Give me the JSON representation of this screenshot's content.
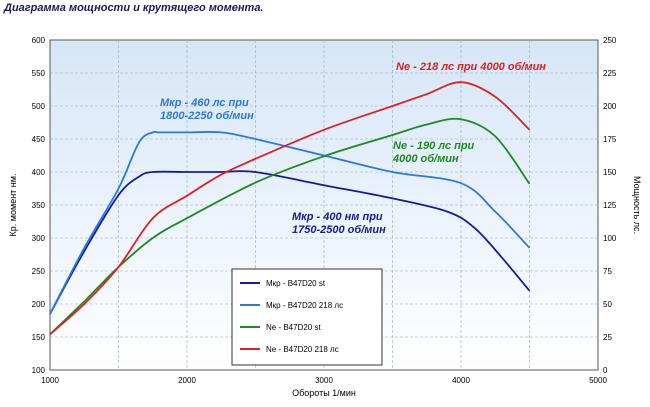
{
  "title": "Диаграмма мощности и крутящего момента.",
  "chart_data": {
    "type": "line",
    "xlabel": "Обороты 1/мин",
    "ylabel_left": "Кр. момент нм.",
    "ylabel_right": "Мощность лс.",
    "xlim": [
      1000,
      5000
    ],
    "ylim_left": [
      100,
      600
    ],
    "ylim_right": [
      0,
      250
    ],
    "x_ticks": [
      1000,
      2000,
      3000,
      4000,
      5000
    ],
    "y_left_ticks": [
      100,
      150,
      200,
      250,
      300,
      350,
      400,
      450,
      500,
      550,
      600
    ],
    "y_right_ticks": [
      0,
      25,
      50,
      75,
      100,
      125,
      150,
      175,
      200,
      225,
      250
    ],
    "grid": true,
    "series": [
      {
        "name": "Mкр -  B47D20 st",
        "axis": "left",
        "color": "#1a1a9a",
        "x": [
          1000,
          1250,
          1500,
          1650,
          1750,
          2000,
          2250,
          2500,
          3000,
          3500,
          3900,
          4100,
          4300,
          4500
        ],
        "y": [
          185,
          280,
          365,
          393,
          400,
          400,
          400,
          400,
          380,
          360,
          340,
          315,
          270,
          220
        ]
      },
      {
        "name": "Mкр -  B47D20 218 лс",
        "axis": "left",
        "color": "#2a7ad8",
        "x": [
          1000,
          1250,
          1500,
          1650,
          1750,
          1800,
          2000,
          2250,
          2500,
          3000,
          3500,
          4000,
          4250,
          4500
        ],
        "y": [
          185,
          285,
          375,
          445,
          460,
          460,
          460,
          460,
          450,
          425,
          400,
          383,
          340,
          285
        ]
      },
      {
        "name": "Ne  -  B47D20 st",
        "axis": "right",
        "color": "#1e8a1e",
        "x": [
          1000,
          1250,
          1500,
          1750,
          2000,
          2500,
          3000,
          3500,
          3750,
          4000,
          4250,
          4500
        ],
        "y": [
          27,
          52,
          78,
          100,
          115,
          142,
          162,
          178,
          186,
          190,
          177,
          141
        ]
      },
      {
        "name": "Ne  -  B47D20 218 лс",
        "axis": "right",
        "color": "#e02020",
        "x": [
          1000,
          1250,
          1500,
          1750,
          2000,
          2250,
          2500,
          3000,
          3500,
          3750,
          4000,
          4250,
          4500
        ],
        "y": [
          27,
          50,
          78,
          115,
          132,
          148,
          160,
          182,
          200,
          209,
          218,
          207,
          182
        ]
      }
    ],
    "annotations": [
      {
        "text": "Mкр - 460 лс при",
        "color": "#2a7ad8"
      },
      {
        "text": "1800-2250 об/мин",
        "color": "#2a7ad8"
      },
      {
        "text": "Ne - 218 лс при 4000 об/мин",
        "color": "#e02020"
      },
      {
        "text": "Ne - 190 лс при",
        "color": "#1e8a1e"
      },
      {
        "text": "4000 об/мин",
        "color": "#1e8a1e"
      },
      {
        "text": "Mкр - 400 нм при",
        "color": "#1a1a9a"
      },
      {
        "text": "1750-2500 об/мин",
        "color": "#1a1a9a"
      }
    ]
  }
}
